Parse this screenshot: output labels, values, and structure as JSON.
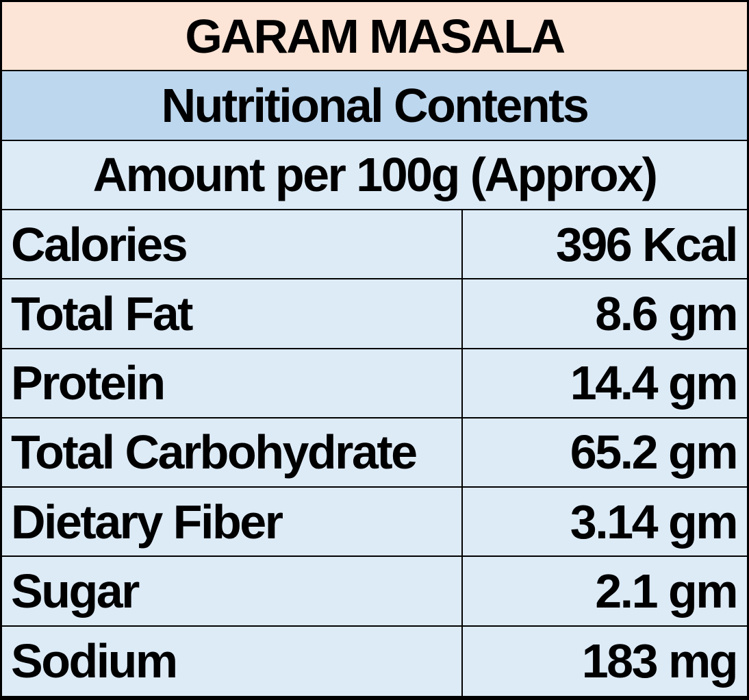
{
  "table": {
    "title": "GARAM MASALA",
    "subtitle": "Nutritional Contents",
    "amount_header": "Amount per 100g (Approx)",
    "rows": [
      {
        "label": "Calories",
        "value": "396 Kcal"
      },
      {
        "label": "Total Fat",
        "value": "8.6 gm"
      },
      {
        "label": "Protein",
        "value": "14.4 gm"
      },
      {
        "label": "Total Carbohydrate",
        "value": "65.2 gm"
      },
      {
        "label": "Dietary Fiber",
        "value": "3.14 gm"
      },
      {
        "label": "Sugar",
        "value": "2.1 gm"
      },
      {
        "label": "Sodium",
        "value": "183 mg"
      }
    ],
    "colors": {
      "title_bg": "#FCE4D6",
      "subtitle_bg": "#BDD7EE",
      "row_bg": "#DDEBF7",
      "border": "#000000",
      "text": "#000000"
    }
  }
}
